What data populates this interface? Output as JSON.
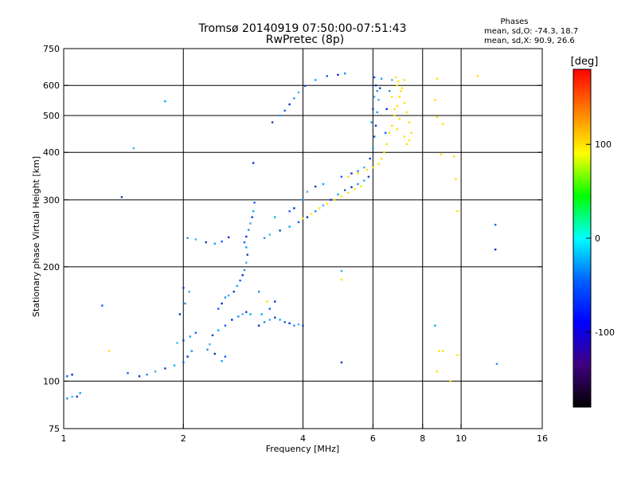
{
  "header": {
    "title_line1": "Tromsø 20140919 07:50:00-07:51:43",
    "title_line2": "RwPretec (8p)",
    "phases_title": "Phases",
    "phases_o": "mean, sd,O: -74.3, 18.7",
    "phases_x": "mean, sd,X:  90.9, 26.6"
  },
  "chart_data": {
    "type": "scatter",
    "xlabel": "Frequency [MHz]",
    "ylabel": "Stationary phase Virtual Height [km]",
    "xscale": "log",
    "yscale": "log",
    "xlim": [
      1,
      16
    ],
    "ylim": [
      75,
      750
    ],
    "x_ticks": [
      1,
      2,
      4,
      6,
      8,
      10,
      16
    ],
    "y_ticks": [
      75,
      100,
      200,
      300,
      400,
      500,
      600,
      750
    ],
    "grid_x": [
      2,
      4,
      6,
      8,
      10
    ],
    "grid_y": [
      100,
      200,
      300,
      400,
      500,
      600
    ],
    "colorbar": {
      "label": "[deg]",
      "range": [
        -180,
        180
      ],
      "ticks": [
        100,
        0,
        -100
      ],
      "colors": [
        "#ff0000",
        "#ff8000",
        "#ffff00",
        "#00ff00",
        "#00ffff",
        "#0060ff",
        "#0000ff",
        "#400080",
        "#000000"
      ]
    },
    "series": [
      {
        "trace": "O-mode",
        "points": [
          [
            1.02,
            103
          ],
          [
            1.05,
            104
          ],
          [
            1.02,
            90
          ],
          [
            1.05,
            91
          ],
          [
            1.08,
            91
          ],
          [
            1.1,
            93
          ],
          [
            1.45,
            105
          ],
          [
            1.55,
            103
          ],
          [
            1.62,
            104
          ],
          [
            1.7,
            106
          ],
          [
            1.8,
            108
          ],
          [
            1.9,
            110
          ],
          [
            2.0,
            112
          ],
          [
            2.05,
            116
          ],
          [
            2.1,
            120
          ],
          [
            1.93,
            126
          ],
          [
            2.0,
            128
          ],
          [
            2.08,
            131
          ],
          [
            2.15,
            134
          ],
          [
            1.96,
            150
          ],
          [
            2.02,
            160
          ],
          [
            2.07,
            172
          ],
          [
            2.0,
            176
          ],
          [
            2.5,
            113
          ],
          [
            2.55,
            116
          ],
          [
            2.4,
            118
          ],
          [
            2.3,
            121
          ],
          [
            2.33,
            125
          ],
          [
            2.37,
            132
          ],
          [
            2.45,
            136
          ],
          [
            2.55,
            140
          ],
          [
            2.65,
            145
          ],
          [
            2.75,
            148
          ],
          [
            2.82,
            150
          ],
          [
            2.88,
            152
          ],
          [
            2.95,
            150
          ],
          [
            2.45,
            155
          ],
          [
            2.5,
            160
          ],
          [
            2.55,
            166
          ],
          [
            2.6,
            168
          ],
          [
            2.68,
            172
          ],
          [
            2.73,
            178
          ],
          [
            2.78,
            184
          ],
          [
            2.82,
            190
          ],
          [
            2.85,
            196
          ],
          [
            2.88,
            205
          ],
          [
            2.9,
            215
          ],
          [
            2.88,
            225
          ],
          [
            2.85,
            232
          ],
          [
            2.88,
            240
          ],
          [
            2.92,
            250
          ],
          [
            2.95,
            260
          ],
          [
            2.98,
            270
          ],
          [
            3.0,
            280
          ],
          [
            3.02,
            295
          ],
          [
            3.1,
            140
          ],
          [
            3.2,
            143
          ],
          [
            3.3,
            145
          ],
          [
            3.4,
            147
          ],
          [
            3.5,
            145
          ],
          [
            3.6,
            143
          ],
          [
            3.7,
            142
          ],
          [
            3.8,
            140
          ],
          [
            3.9,
            141
          ],
          [
            4.0,
            140
          ],
          [
            3.15,
            150
          ],
          [
            3.3,
            155
          ],
          [
            3.4,
            162
          ],
          [
            2.05,
            238
          ],
          [
            2.15,
            236
          ],
          [
            2.28,
            232
          ],
          [
            2.4,
            230
          ],
          [
            2.5,
            233
          ],
          [
            2.6,
            239
          ],
          [
            3.2,
            238
          ],
          [
            3.3,
            243
          ],
          [
            3.5,
            249
          ],
          [
            3.7,
            255
          ],
          [
            3.9,
            262
          ],
          [
            4.1,
            270
          ],
          [
            4.3,
            280
          ],
          [
            4.5,
            290
          ],
          [
            4.7,
            300
          ],
          [
            4.9,
            310
          ],
          [
            5.1,
            318
          ],
          [
            5.3,
            324
          ],
          [
            5.5,
            330
          ],
          [
            5.7,
            337
          ],
          [
            5.85,
            345
          ],
          [
            3.4,
            270
          ],
          [
            3.7,
            280
          ],
          [
            3.8,
            285
          ],
          [
            4.0,
            300
          ],
          [
            4.1,
            315
          ],
          [
            4.3,
            325
          ],
          [
            4.5,
            330
          ],
          [
            5.0,
            345
          ],
          [
            5.3,
            352
          ],
          [
            5.5,
            357
          ],
          [
            5.7,
            365
          ],
          [
            5.9,
            385
          ],
          [
            6.0,
            410
          ],
          [
            6.05,
            440
          ],
          [
            6.1,
            470
          ],
          [
            6.15,
            510
          ],
          [
            6.2,
            550
          ],
          [
            6.25,
            590
          ],
          [
            6.3,
            625
          ],
          [
            6.05,
            630
          ],
          [
            6.1,
            600
          ],
          [
            6.15,
            580
          ],
          [
            6.05,
            560
          ],
          [
            6.0,
            520
          ],
          [
            5.95,
            480
          ],
          [
            6.45,
            450
          ],
          [
            6.5,
            520
          ],
          [
            6.6,
            580
          ],
          [
            6.7,
            620
          ],
          [
            3.35,
            480
          ],
          [
            3.5,
            500
          ],
          [
            3.6,
            515
          ],
          [
            3.7,
            535
          ],
          [
            3.8,
            555
          ],
          [
            3.9,
            575
          ],
          [
            4.05,
            598
          ],
          [
            4.3,
            620
          ],
          [
            4.6,
            635
          ],
          [
            4.9,
            640
          ],
          [
            5.1,
            645
          ],
          [
            1.5,
            410
          ],
          [
            1.4,
            305
          ],
          [
            1.8,
            545
          ],
          [
            1.25,
            158
          ],
          [
            3.0,
            375
          ],
          [
            3.1,
            172
          ],
          [
            5.0,
            195
          ],
          [
            5.0,
            112
          ],
          [
            8.6,
            140
          ],
          [
            12.2,
            258
          ],
          [
            12.2,
            222
          ],
          [
            12.3,
            111
          ]
        ]
      },
      {
        "trace": "X-mode",
        "points": [
          [
            4.0,
            268
          ],
          [
            4.2,
            275
          ],
          [
            4.4,
            285
          ],
          [
            4.6,
            293
          ],
          [
            4.8,
            300
          ],
          [
            5.0,
            306
          ],
          [
            5.2,
            313
          ],
          [
            5.4,
            320
          ],
          [
            5.6,
            326
          ],
          [
            5.2,
            345
          ],
          [
            5.5,
            352
          ],
          [
            5.8,
            360
          ],
          [
            6.0,
            365
          ],
          [
            6.2,
            373
          ],
          [
            6.3,
            385
          ],
          [
            6.4,
            400
          ],
          [
            6.5,
            420
          ],
          [
            6.6,
            450
          ],
          [
            6.7,
            470
          ],
          [
            6.8,
            500
          ],
          [
            6.9,
            530
          ],
          [
            7.0,
            560
          ],
          [
            7.1,
            590
          ],
          [
            7.2,
            620
          ],
          [
            6.85,
            630
          ],
          [
            6.95,
            615
          ],
          [
            7.05,
            580
          ],
          [
            7.2,
            540
          ],
          [
            7.3,
            510
          ],
          [
            7.4,
            480
          ],
          [
            7.5,
            450
          ],
          [
            7.4,
            430
          ],
          [
            7.3,
            420
          ],
          [
            7.2,
            440
          ],
          [
            6.9,
            460
          ],
          [
            7.0,
            490
          ],
          [
            6.8,
            520
          ],
          [
            6.7,
            560
          ],
          [
            6.9,
            600
          ],
          [
            1.3,
            120
          ],
          [
            3.25,
            162
          ],
          [
            5.0,
            185
          ],
          [
            8.7,
            625
          ],
          [
            8.6,
            550
          ],
          [
            8.7,
            495
          ],
          [
            9.0,
            475
          ],
          [
            8.9,
            395
          ],
          [
            9.6,
            390
          ],
          [
            9.7,
            340
          ],
          [
            9.8,
            280
          ],
          [
            8.8,
            120
          ],
          [
            9.0,
            120
          ],
          [
            9.8,
            117
          ],
          [
            9.4,
            100
          ],
          [
            8.7,
            106
          ],
          [
            11.0,
            635
          ]
        ]
      }
    ]
  },
  "colors": {
    "grid": "#000000",
    "o_mode": [
      "#1060ff",
      "#0030d0",
      "#2090f0",
      "#40b0f0",
      "#1040c0",
      "#00a8ff"
    ],
    "x_mode": [
      "#ff2000",
      "#ff7800",
      "#ffb000",
      "#ffe000",
      "#d8ff00",
      "#a0ff00",
      "#40ff40"
    ]
  }
}
